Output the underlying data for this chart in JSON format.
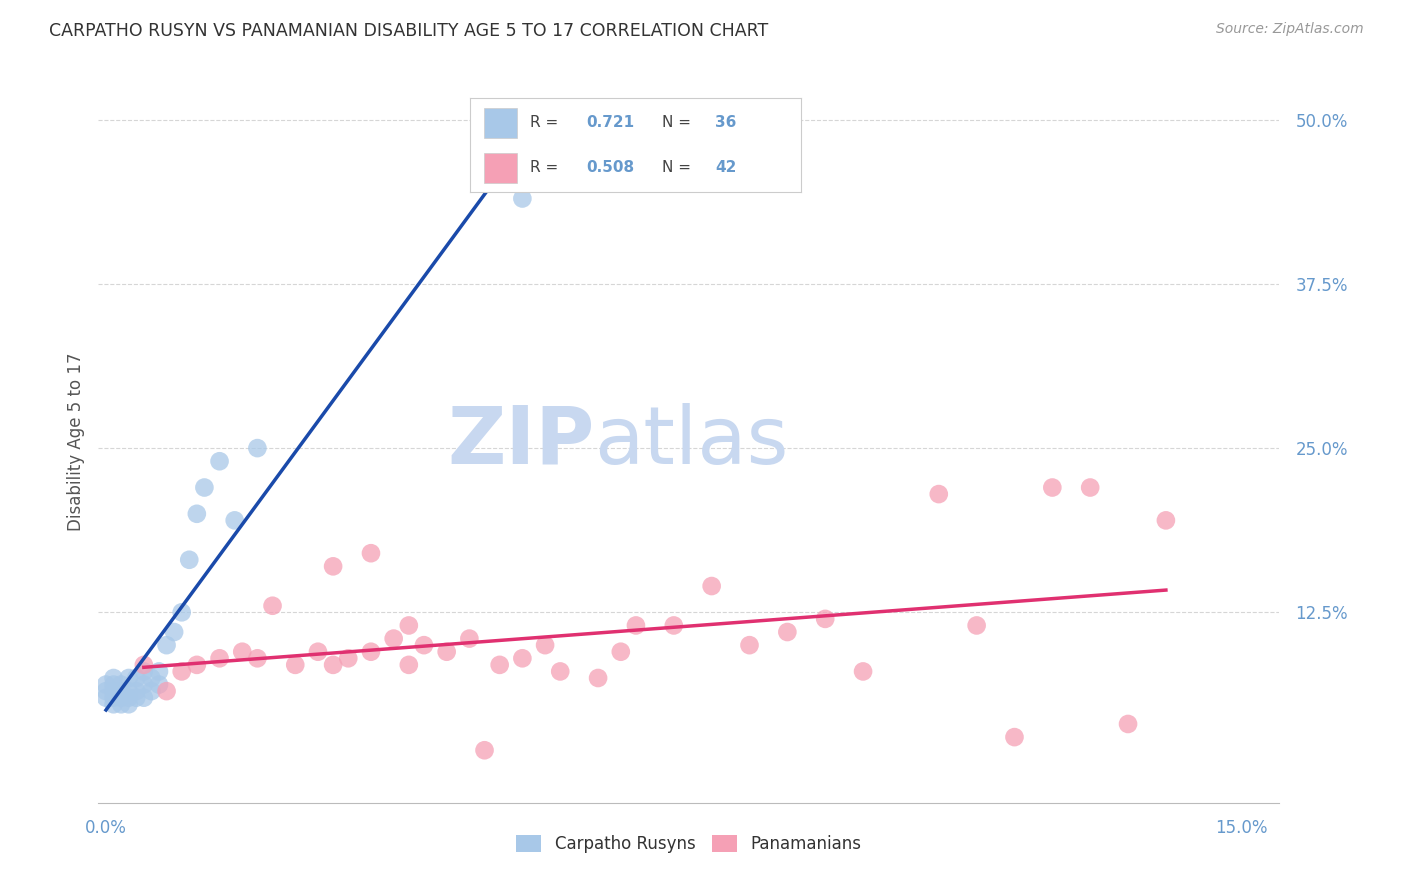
{
  "title": "CARPATHO RUSYN VS PANAMANIAN DISABILITY AGE 5 TO 17 CORRELATION CHART",
  "source": "Source: ZipAtlas.com",
  "ylabel_label": "Disability Age 5 to 17",
  "legend1_label": "Carpatho Rusyns",
  "legend2_label": "Panamanians",
  "R1": "0.721",
  "N1": "36",
  "R2": "0.508",
  "N2": "42",
  "color_blue": "#a8c8e8",
  "color_pink": "#f5a0b5",
  "color_blue_line": "#1a4aaa",
  "color_pink_line": "#e03070",
  "axis_label_color": "#6699cc",
  "watermark_zip_color": "#c8d8f0",
  "watermark_atlas_color": "#c8d8f0",
  "xlim": [
    0.0,
    0.15
  ],
  "ylim": [
    0.0,
    0.52
  ],
  "blue_points_x": [
    0.0,
    0.0,
    0.0,
    0.001,
    0.001,
    0.001,
    0.001,
    0.001,
    0.002,
    0.002,
    0.002,
    0.002,
    0.003,
    0.003,
    0.003,
    0.003,
    0.004,
    0.004,
    0.004,
    0.005,
    0.005,
    0.005,
    0.006,
    0.006,
    0.007,
    0.007,
    0.008,
    0.009,
    0.01,
    0.011,
    0.012,
    0.013,
    0.015,
    0.017,
    0.02,
    0.055
  ],
  "blue_points_y": [
    0.06,
    0.065,
    0.07,
    0.055,
    0.06,
    0.065,
    0.07,
    0.075,
    0.055,
    0.06,
    0.065,
    0.07,
    0.055,
    0.06,
    0.065,
    0.075,
    0.06,
    0.065,
    0.075,
    0.06,
    0.07,
    0.08,
    0.065,
    0.075,
    0.07,
    0.08,
    0.1,
    0.11,
    0.125,
    0.165,
    0.2,
    0.22,
    0.24,
    0.195,
    0.25,
    0.44
  ],
  "pink_points_x": [
    0.005,
    0.008,
    0.01,
    0.012,
    0.015,
    0.018,
    0.02,
    0.022,
    0.025,
    0.028,
    0.03,
    0.03,
    0.032,
    0.035,
    0.035,
    0.038,
    0.04,
    0.04,
    0.042,
    0.045,
    0.048,
    0.05,
    0.052,
    0.055,
    0.058,
    0.06,
    0.065,
    0.068,
    0.07,
    0.075,
    0.08,
    0.085,
    0.09,
    0.095,
    0.1,
    0.11,
    0.115,
    0.12,
    0.125,
    0.13,
    0.135,
    0.14
  ],
  "pink_points_y": [
    0.085,
    0.065,
    0.08,
    0.085,
    0.09,
    0.095,
    0.09,
    0.13,
    0.085,
    0.095,
    0.085,
    0.16,
    0.09,
    0.095,
    0.17,
    0.105,
    0.085,
    0.115,
    0.1,
    0.095,
    0.105,
    0.02,
    0.085,
    0.09,
    0.1,
    0.08,
    0.075,
    0.095,
    0.115,
    0.115,
    0.145,
    0.1,
    0.11,
    0.12,
    0.08,
    0.215,
    0.115,
    0.03,
    0.22,
    0.22,
    0.04,
    0.195
  ]
}
